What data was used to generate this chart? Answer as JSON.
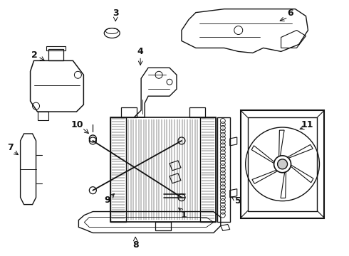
{
  "background_color": "#ffffff",
  "line_color": "#111111",
  "fig_width": 4.9,
  "fig_height": 3.6,
  "dpi": 100
}
